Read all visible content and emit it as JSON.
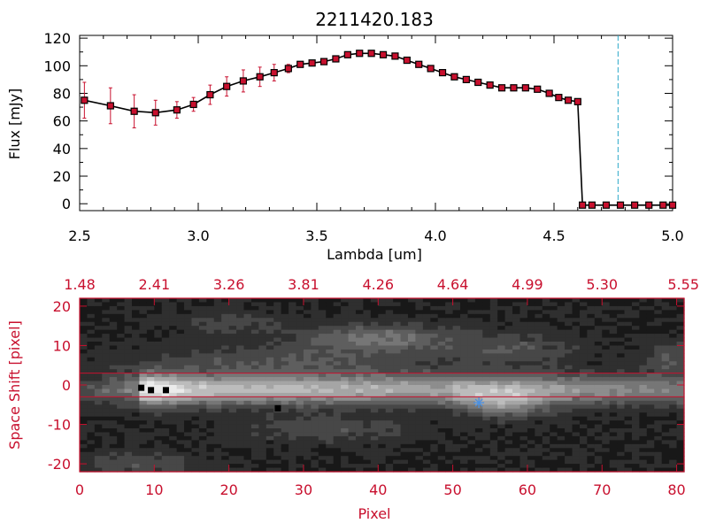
{
  "chart_data": [
    {
      "type": "line",
      "title": "2211420.183",
      "xlabel": "Lambda [um]",
      "ylabel": "Flux [mJy]",
      "xlim": [
        2.5,
        5.0
      ],
      "ylim": [
        -5,
        122
      ],
      "xticks": [
        "2.5",
        "3.0",
        "3.5",
        "4.0",
        "4.5",
        "5.0"
      ],
      "yticks": [
        "0",
        "20",
        "40",
        "60",
        "80",
        "100",
        "120"
      ],
      "marker_line": 4.77,
      "colors": {
        "line": "#000000",
        "marker": "#c8102e",
        "error": "#c8102e",
        "marker_line": "#2aa8c8"
      },
      "series": [
        {
          "x": [
            2.52,
            2.63,
            2.73,
            2.82,
            2.91,
            2.98,
            3.05,
            3.12,
            3.19,
            3.26,
            3.32,
            3.38,
            3.43,
            3.48,
            3.53,
            3.58,
            3.63,
            3.68,
            3.73,
            3.78,
            3.83,
            3.88,
            3.93,
            3.98,
            4.03,
            4.08,
            4.13,
            4.18,
            4.23,
            4.28,
            4.33,
            4.38,
            4.43,
            4.48,
            4.52,
            4.56,
            4.6,
            4.62,
            4.66,
            4.72,
            4.78,
            4.84,
            4.9,
            4.96,
            5.0
          ],
          "y": [
            75,
            71,
            67,
            66,
            68,
            72,
            79,
            85,
            89,
            92,
            95,
            98,
            101,
            102,
            103,
            105,
            108,
            109,
            109,
            108,
            107,
            104,
            101,
            98,
            95,
            92,
            90,
            88,
            86,
            84,
            84,
            84,
            83,
            80,
            77,
            75,
            74,
            -1,
            -1,
            -1,
            -1,
            -1,
            -1,
            -1,
            -1
          ],
          "yerr": [
            13,
            13,
            12,
            9,
            6,
            5,
            7,
            7,
            8,
            7,
            6,
            3,
            2,
            2,
            2,
            2,
            2,
            2,
            2,
            2,
            2,
            2,
            2,
            2,
            2,
            2,
            2,
            2,
            2,
            2,
            2,
            2,
            2,
            2,
            2,
            2,
            2,
            0,
            0,
            0,
            0,
            0,
            0,
            0,
            0
          ]
        }
      ]
    },
    {
      "type": "heatmap",
      "xlabel": "Pixel",
      "ylabel": "Space Shift [pixel]",
      "xlim": [
        0,
        81
      ],
      "ylim": [
        -22,
        22
      ],
      "xticks": [
        "0",
        "10",
        "20",
        "30",
        "40",
        "50",
        "60",
        "70",
        "80"
      ],
      "yticks": [
        "-20",
        "-10",
        "0",
        "10",
        "20"
      ],
      "top_axis_ticks": [
        "1.48",
        "2.41",
        "3.26",
        "3.81",
        "4.26",
        "4.64",
        "4.99",
        "5.30",
        "5.55"
      ],
      "aperture_lines": [
        3,
        -3
      ],
      "star_marker": {
        "x": 53.5,
        "y": -4.5
      },
      "colors": {
        "axis": "#c8102e",
        "aperture": "#c8102e",
        "star": "#4a90e2"
      }
    }
  ]
}
